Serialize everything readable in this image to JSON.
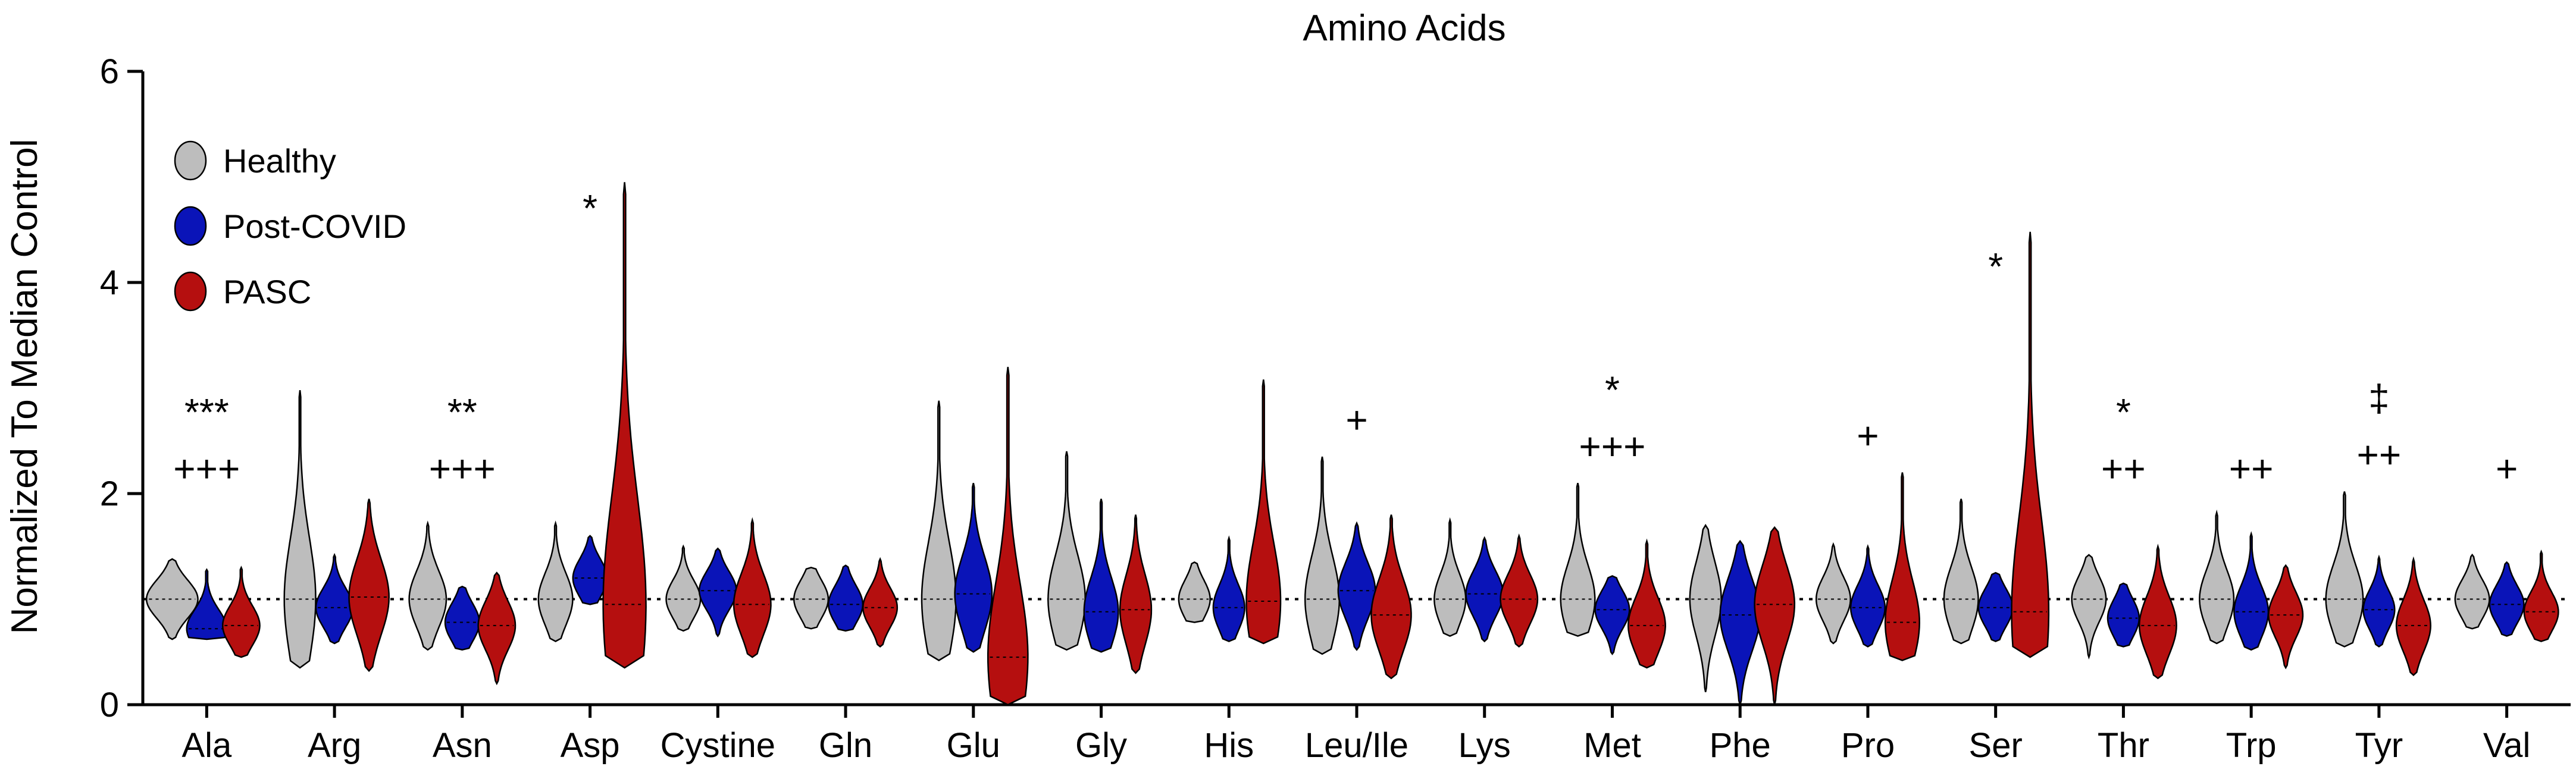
{
  "chart_data": {
    "type": "violin",
    "title": "Amino Acids",
    "xlabel": "",
    "ylabel": "Normalized To Median Control",
    "ylim": [
      0,
      6
    ],
    "yticks": [
      0,
      2,
      4,
      6
    ],
    "reference_line": 1,
    "colors": {
      "Healthy": "#bdbdbd",
      "Post-COVID": "#0a14b8",
      "PASC": "#b50f0f"
    },
    "series": [
      {
        "name": "Healthy",
        "color": "#bdbdbd"
      },
      {
        "name": "Post-COVID",
        "color": "#0a14b8"
      },
      {
        "name": "PASC",
        "color": "#b50f0f"
      }
    ],
    "categories": [
      "Ala",
      "Arg",
      "Asn",
      "Asp",
      "Cystine",
      "Gln",
      "Glu",
      "Gly",
      "His",
      "Leu/Ile",
      "Lys",
      "Met",
      "Phe",
      "Pro",
      "Ser",
      "Thr",
      "Trp",
      "Tyr",
      "Val"
    ],
    "groups": [
      {
        "category": "Ala",
        "violins": [
          {
            "min": 0.62,
            "max": 1.38,
            "median": 1.0,
            "width": 0.9
          },
          {
            "min": 0.62,
            "max": 1.28,
            "median": 0.72,
            "width": 0.7
          },
          {
            "min": 0.45,
            "max": 1.3,
            "median": 0.75,
            "width": 0.65
          }
        ],
        "annotations": [
          "***",
          "+++"
        ]
      },
      {
        "category": "Arg",
        "violins": [
          {
            "min": 0.35,
            "max": 2.98,
            "median": 1.0,
            "width": 0.55
          },
          {
            "min": 0.58,
            "max": 1.42,
            "median": 0.92,
            "width": 0.65
          },
          {
            "min": 0.32,
            "max": 1.95,
            "median": 1.02,
            "width": 0.7
          }
        ],
        "annotations": []
      },
      {
        "category": "Asn",
        "violins": [
          {
            "min": 0.52,
            "max": 1.72,
            "median": 1.0,
            "width": 0.65
          },
          {
            "min": 0.52,
            "max": 1.12,
            "median": 0.78,
            "width": 0.6
          },
          {
            "min": 0.2,
            "max": 1.25,
            "median": 0.75,
            "width": 0.65
          }
        ],
        "annotations": [
          "**",
          "+++"
        ]
      },
      {
        "category": "Asp",
        "violins": [
          {
            "min": 0.6,
            "max": 1.72,
            "median": 1.0,
            "width": 0.6
          },
          {
            "min": 0.95,
            "max": 1.6,
            "median": 1.2,
            "width": 0.6
          },
          {
            "min": 0.35,
            "max": 4.95,
            "median": 0.95,
            "width": 0.75
          }
        ],
        "annotations": [
          "*"
        ]
      },
      {
        "category": "Cystine",
        "violins": [
          {
            "min": 0.7,
            "max": 1.5,
            "median": 1.0,
            "width": 0.6
          },
          {
            "min": 0.65,
            "max": 1.48,
            "median": 1.08,
            "width": 0.65
          },
          {
            "min": 0.45,
            "max": 1.75,
            "median": 0.95,
            "width": 0.65
          }
        ],
        "annotations": []
      },
      {
        "category": "Gln",
        "violins": [
          {
            "min": 0.72,
            "max": 1.3,
            "median": 1.0,
            "width": 0.6
          },
          {
            "min": 0.7,
            "max": 1.32,
            "median": 0.95,
            "width": 0.6
          },
          {
            "min": 0.55,
            "max": 1.38,
            "median": 0.92,
            "width": 0.6
          }
        ],
        "annotations": []
      },
      {
        "category": "Glu",
        "violins": [
          {
            "min": 0.42,
            "max": 2.88,
            "median": 1.0,
            "width": 0.6
          },
          {
            "min": 0.5,
            "max": 2.1,
            "median": 1.05,
            "width": 0.65
          },
          {
            "min": 0.0,
            "max": 3.2,
            "median": 0.45,
            "width": 0.7
          }
        ],
        "annotations": []
      },
      {
        "category": "Gly",
        "violins": [
          {
            "min": 0.52,
            "max": 2.4,
            "median": 1.0,
            "width": 0.65
          },
          {
            "min": 0.5,
            "max": 1.95,
            "median": 0.88,
            "width": 0.6
          },
          {
            "min": 0.3,
            "max": 1.8,
            "median": 0.9,
            "width": 0.55
          }
        ],
        "annotations": []
      },
      {
        "category": "His",
        "violins": [
          {
            "min": 0.78,
            "max": 1.35,
            "median": 1.0,
            "width": 0.55
          },
          {
            "min": 0.6,
            "max": 1.58,
            "median": 0.92,
            "width": 0.55
          },
          {
            "min": 0.58,
            "max": 3.08,
            "median": 0.98,
            "width": 0.6
          }
        ],
        "annotations": []
      },
      {
        "category": "Leu/Ile",
        "violins": [
          {
            "min": 0.48,
            "max": 2.35,
            "median": 1.0,
            "width": 0.6
          },
          {
            "min": 0.52,
            "max": 1.72,
            "median": 1.08,
            "width": 0.65
          },
          {
            "min": 0.25,
            "max": 1.8,
            "median": 0.85,
            "width": 0.7
          }
        ],
        "annotations": [
          "+"
        ]
      },
      {
        "category": "Lys",
        "violins": [
          {
            "min": 0.65,
            "max": 1.75,
            "median": 1.0,
            "width": 0.55
          },
          {
            "min": 0.6,
            "max": 1.58,
            "median": 1.05,
            "width": 0.65
          },
          {
            "min": 0.55,
            "max": 1.6,
            "median": 1.0,
            "width": 0.65
          }
        ],
        "annotations": []
      },
      {
        "category": "Met",
        "violins": [
          {
            "min": 0.65,
            "max": 2.1,
            "median": 1.0,
            "width": 0.6
          },
          {
            "min": 0.48,
            "max": 1.22,
            "median": 0.9,
            "width": 0.6
          },
          {
            "min": 0.35,
            "max": 1.55,
            "median": 0.75,
            "width": 0.65
          }
        ],
        "annotations": [
          "*",
          "+++"
        ]
      },
      {
        "category": "Phe",
        "violins": [
          {
            "min": 0.12,
            "max": 1.7,
            "median": 1.0,
            "width": 0.55
          },
          {
            "min": 0.0,
            "max": 1.55,
            "median": 0.85,
            "width": 0.7
          },
          {
            "min": 0.0,
            "max": 1.68,
            "median": 0.95,
            "width": 0.7
          }
        ],
        "annotations": []
      },
      {
        "category": "Pro",
        "violins": [
          {
            "min": 0.58,
            "max": 1.52,
            "median": 1.0,
            "width": 0.6
          },
          {
            "min": 0.55,
            "max": 1.5,
            "median": 0.92,
            "width": 0.6
          },
          {
            "min": 0.42,
            "max": 2.2,
            "median": 0.78,
            "width": 0.6
          }
        ],
        "annotations": [
          "+"
        ]
      },
      {
        "category": "Ser",
        "violins": [
          {
            "min": 0.58,
            "max": 1.95,
            "median": 1.0,
            "width": 0.6
          },
          {
            "min": 0.6,
            "max": 1.25,
            "median": 0.92,
            "width": 0.6
          },
          {
            "min": 0.45,
            "max": 4.48,
            "median": 0.88,
            "width": 0.65
          }
        ],
        "annotations": [
          "*"
        ]
      },
      {
        "category": "Thr",
        "violins": [
          {
            "min": 0.45,
            "max": 1.42,
            "median": 1.0,
            "width": 0.6
          },
          {
            "min": 0.55,
            "max": 1.15,
            "median": 0.82,
            "width": 0.55
          },
          {
            "min": 0.25,
            "max": 1.5,
            "median": 0.75,
            "width": 0.65
          }
        ],
        "annotations": [
          "*",
          "++"
        ]
      },
      {
        "category": "Trp",
        "violins": [
          {
            "min": 0.58,
            "max": 1.82,
            "median": 1.0,
            "width": 0.6
          },
          {
            "min": 0.52,
            "max": 1.62,
            "median": 0.88,
            "width": 0.6
          },
          {
            "min": 0.35,
            "max": 1.32,
            "median": 0.85,
            "width": 0.6
          }
        ],
        "annotations": [
          "++"
        ]
      },
      {
        "category": "Tyr",
        "violins": [
          {
            "min": 0.55,
            "max": 2.02,
            "median": 1.0,
            "width": 0.65
          },
          {
            "min": 0.55,
            "max": 1.4,
            "median": 0.9,
            "width": 0.55
          },
          {
            "min": 0.28,
            "max": 1.38,
            "median": 0.75,
            "width": 0.6
          }
        ],
        "annotations": [
          "‡",
          "++"
        ]
      },
      {
        "category": "Val",
        "violins": [
          {
            "min": 0.72,
            "max": 1.42,
            "median": 1.0,
            "width": 0.6
          },
          {
            "min": 0.65,
            "max": 1.35,
            "median": 0.95,
            "width": 0.6
          },
          {
            "min": 0.6,
            "max": 1.45,
            "median": 0.88,
            "width": 0.6
          }
        ],
        "annotations": [
          "+"
        ]
      }
    ]
  }
}
